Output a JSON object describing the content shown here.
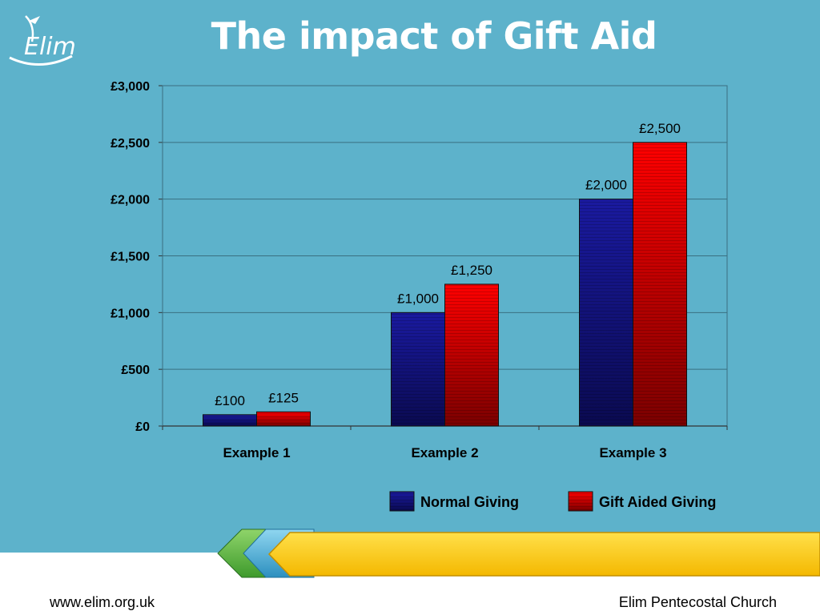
{
  "slide": {
    "title": "The impact of Gift Aid",
    "logo_text": "Elim",
    "footer_left": "www.elim.org.uk",
    "footer_right": "Elim Pentecostal Church",
    "background": "#5db2cb"
  },
  "chart_data": {
    "type": "bar",
    "categories": [
      "Example 1",
      "Example 2",
      "Example 3"
    ],
    "series": [
      {
        "name": "Normal Giving",
        "values": [
          100,
          1000,
          2000
        ],
        "labels": [
          "£100",
          "£1,000",
          "£2,000"
        ],
        "color": "#1a1aa0"
      },
      {
        "name": "Gift Aided Giving",
        "values": [
          125,
          1250,
          2500
        ],
        "labels": [
          "£125",
          "£1,250",
          "£2,500"
        ],
        "color": "#ee0000"
      }
    ],
    "yticks": [
      0,
      500,
      1000,
      1500,
      2000,
      2500,
      3000
    ],
    "ytick_labels": [
      "£0",
      "£500",
      "£1,000",
      "£1,500",
      "£2,000",
      "£2,500",
      "£3,000"
    ],
    "ylim": [
      0,
      3000
    ],
    "grid": true,
    "legend_position": "bottom"
  }
}
